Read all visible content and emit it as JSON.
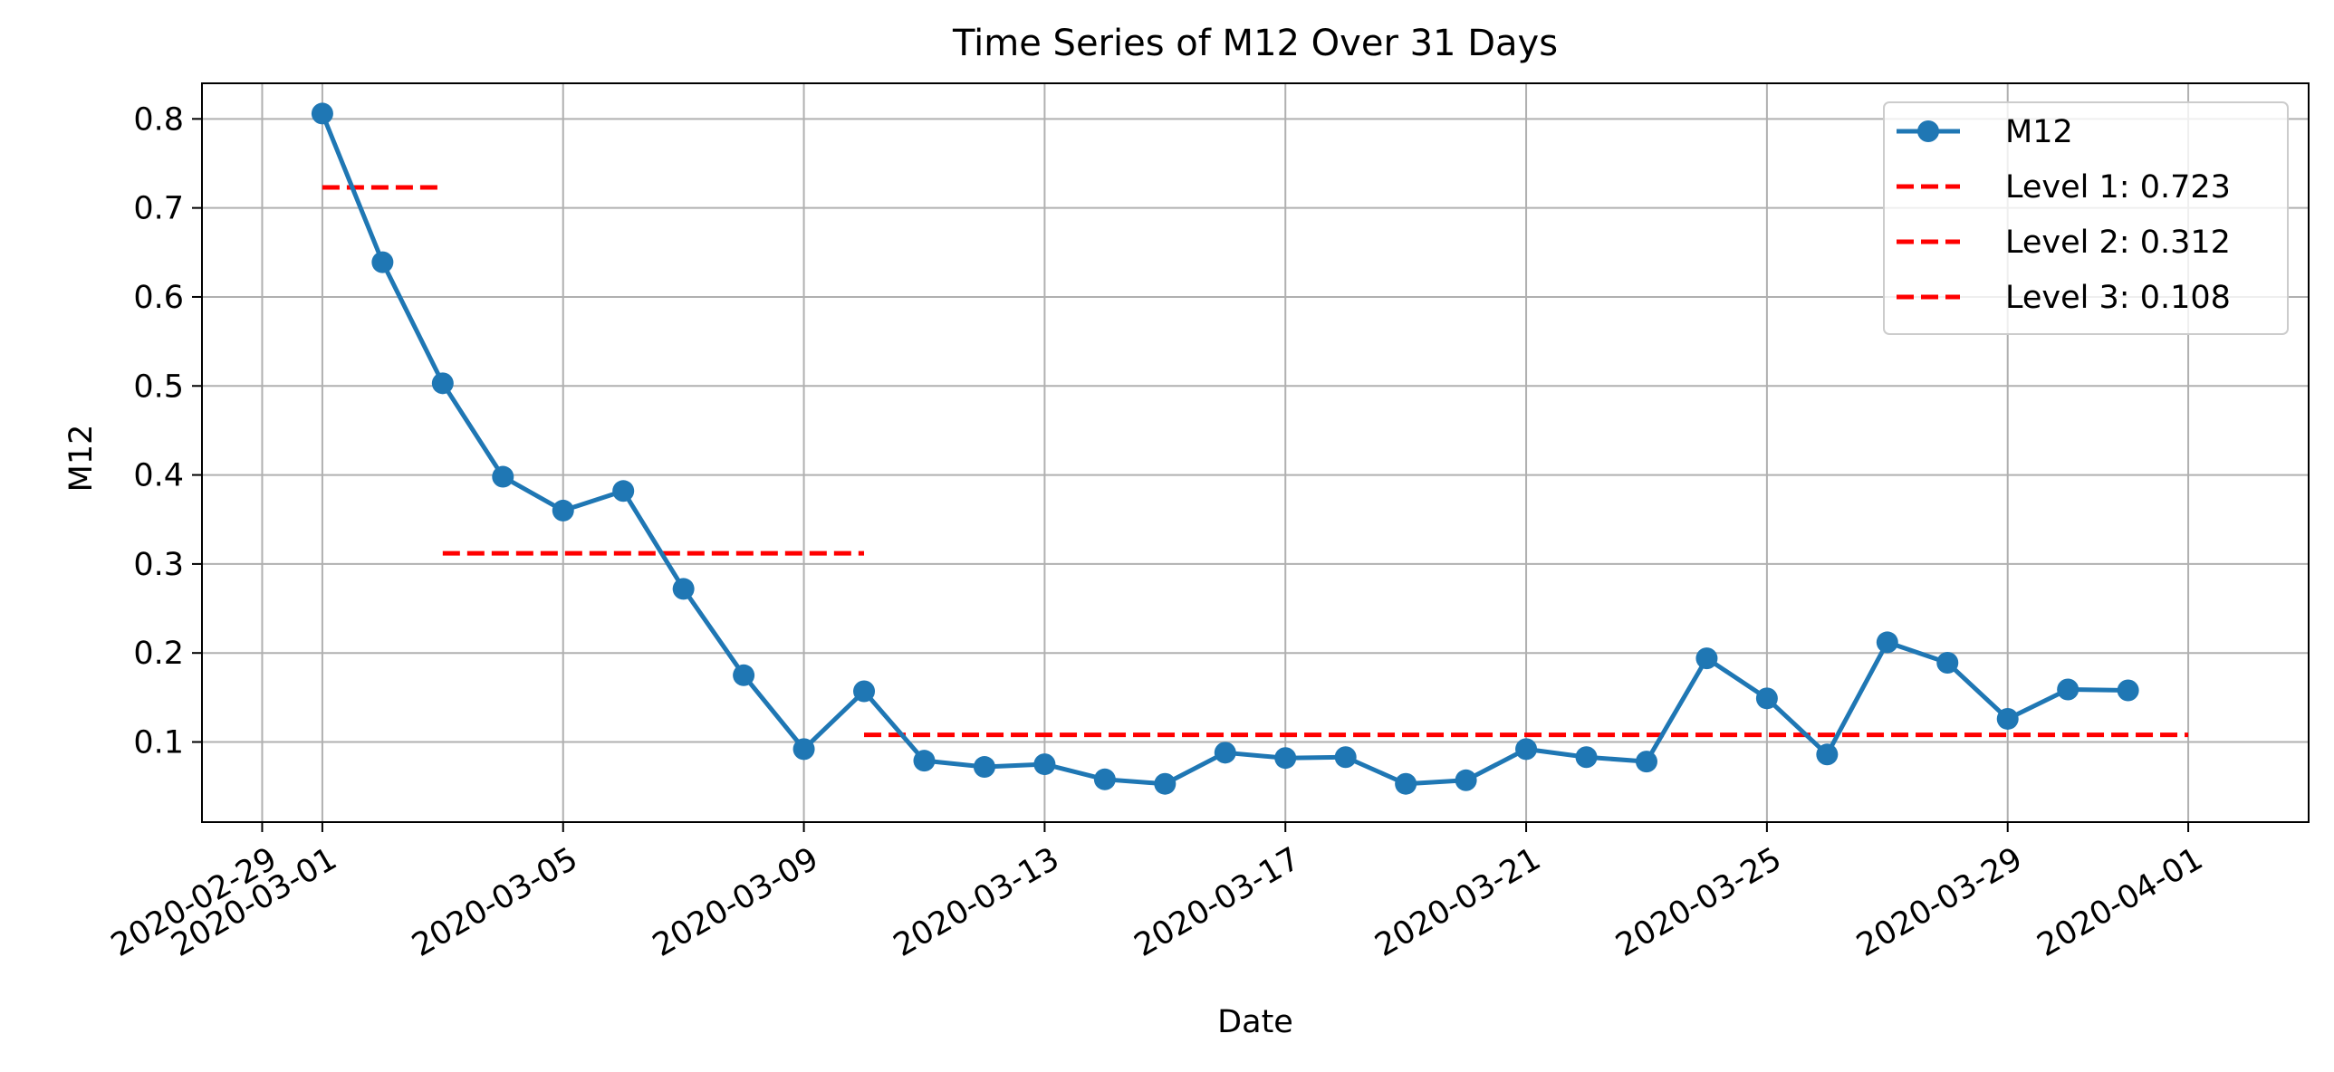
{
  "chart_data": {
    "type": "line",
    "title": "Time Series of M12 Over 31 Days",
    "xlabel": "Date",
    "ylabel": "M12",
    "xlim": [
      "2020-02-28",
      "2020-04-03"
    ],
    "ylim": [
      0.01,
      0.84
    ],
    "x_ticks": [
      "2020-02-29",
      "2020-03-01",
      "2020-03-05",
      "2020-03-09",
      "2020-03-13",
      "2020-03-17",
      "2020-03-21",
      "2020-03-25",
      "2020-03-29",
      "2020-04-01"
    ],
    "y_ticks": [
      0.1,
      0.2,
      0.3,
      0.4,
      0.5,
      0.6,
      0.7,
      0.8
    ],
    "grid": true,
    "legend_position": "top-right",
    "series": [
      {
        "name": "M12",
        "color": "#1f77b4",
        "marker": "circle",
        "x": [
          "2020-03-01",
          "2020-03-02",
          "2020-03-03",
          "2020-03-04",
          "2020-03-05",
          "2020-03-06",
          "2020-03-07",
          "2020-03-08",
          "2020-03-09",
          "2020-03-10",
          "2020-03-11",
          "2020-03-12",
          "2020-03-13",
          "2020-03-14",
          "2020-03-15",
          "2020-03-16",
          "2020-03-17",
          "2020-03-18",
          "2020-03-19",
          "2020-03-20",
          "2020-03-21",
          "2020-03-22",
          "2020-03-23",
          "2020-03-24",
          "2020-03-25",
          "2020-03-26",
          "2020-03-27",
          "2020-03-28",
          "2020-03-29",
          "2020-03-30",
          "2020-03-31"
        ],
        "values": [
          0.806,
          0.639,
          0.503,
          0.398,
          0.36,
          0.382,
          0.272,
          0.175,
          0.092,
          0.157,
          0.079,
          0.072,
          0.075,
          0.058,
          0.053,
          0.088,
          0.082,
          0.083,
          0.053,
          0.057,
          0.092,
          0.083,
          0.078,
          0.194,
          0.149,
          0.086,
          0.212,
          0.189,
          0.126,
          0.159,
          0.158
        ]
      }
    ],
    "levels": [
      {
        "name": "Level 1: 0.723",
        "value": 0.723,
        "x_start": "2020-03-01",
        "x_end": "2020-03-03",
        "color": "#ff0000",
        "style": "dashed"
      },
      {
        "name": "Level 2: 0.312",
        "value": 0.312,
        "x_start": "2020-03-03",
        "x_end": "2020-03-10",
        "color": "#ff0000",
        "style": "dashed"
      },
      {
        "name": "Level 3: 0.108",
        "value": 0.108,
        "x_start": "2020-03-10",
        "x_end": "2020-04-01",
        "color": "#ff0000",
        "style": "dashed"
      }
    ]
  }
}
